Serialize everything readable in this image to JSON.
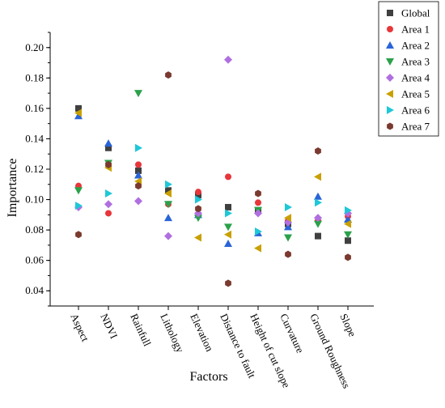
{
  "chart_data": {
    "type": "scatter",
    "xlabel": "Factors",
    "ylabel": "Importance",
    "categories": [
      "Aspect",
      "NDVI",
      "Rainfull",
      "Lithology",
      "Elevation",
      "Distance to fault",
      "Height of cut slope",
      "Curvature",
      "Ground Roughness",
      "Slope"
    ],
    "ylim": [
      0.03,
      0.21
    ],
    "yticks": [
      "0.04",
      "0.06",
      "0.08",
      "0.10",
      "0.12",
      "0.14",
      "0.16",
      "0.18",
      "0.20"
    ],
    "ytick_values": [
      0.04,
      0.06,
      0.08,
      0.1,
      0.12,
      0.14,
      0.16,
      0.18,
      0.2
    ],
    "grid": false,
    "legend_position": "top-right",
    "series": [
      {
        "name": "Global",
        "marker": "square",
        "color": "#404040",
        "values": [
          0.16,
          0.134,
          0.119,
          0.106,
          0.103,
          0.095,
          0.093,
          0.084,
          0.076,
          0.073
        ]
      },
      {
        "name": "Area 1",
        "marker": "circle",
        "color": "#e8363b",
        "values": [
          0.109,
          0.091,
          0.123,
          0.097,
          0.105,
          0.115,
          0.098,
          0.086,
          0.086,
          0.089
        ]
      },
      {
        "name": "Area 2",
        "marker": "triangle-up",
        "color": "#2a64d8",
        "values": [
          0.155,
          0.137,
          0.116,
          0.088,
          0.09,
          0.071,
          0.078,
          0.082,
          0.102,
          0.087
        ]
      },
      {
        "name": "Area 3",
        "marker": "triangle-down",
        "color": "#2aa14a",
        "values": [
          0.106,
          0.124,
          0.17,
          0.097,
          0.088,
          0.082,
          0.093,
          0.075,
          0.084,
          0.077
        ]
      },
      {
        "name": "Area 4",
        "marker": "diamond",
        "color": "#b06fe0",
        "values": [
          0.095,
          0.097,
          0.099,
          0.076,
          0.091,
          0.192,
          0.091,
          0.085,
          0.088,
          0.091
        ]
      },
      {
        "name": "Area 5",
        "marker": "triangle-left",
        "color": "#c9a000",
        "values": [
          0.157,
          0.121,
          0.112,
          0.104,
          0.075,
          0.077,
          0.068,
          0.088,
          0.115,
          0.084
        ]
      },
      {
        "name": "Area 6",
        "marker": "triangle-right",
        "color": "#1ec8d8",
        "values": [
          0.096,
          0.104,
          0.134,
          0.11,
          0.1,
          0.091,
          0.079,
          0.095,
          0.098,
          0.093
        ]
      },
      {
        "name": "Area 7",
        "marker": "hexagon",
        "color": "#7a3a2f",
        "values": [
          0.077,
          0.123,
          0.109,
          0.182,
          0.094,
          0.045,
          0.104,
          0.064,
          0.132,
          0.062
        ]
      }
    ]
  }
}
